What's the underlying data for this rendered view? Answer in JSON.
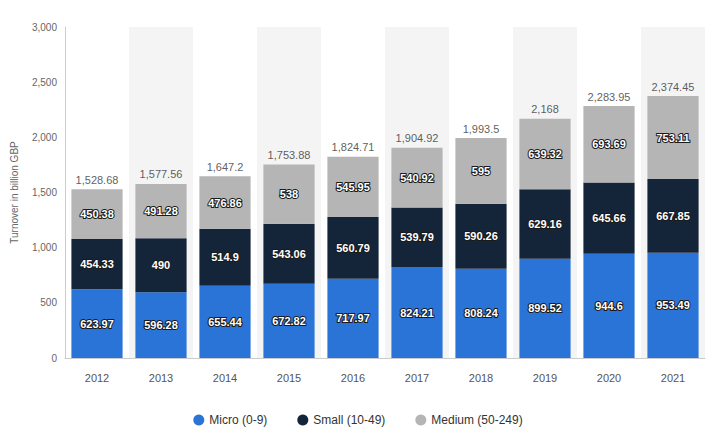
{
  "chart_data": {
    "type": "bar",
    "stacked": true,
    "data_labels": true,
    "grid": true,
    "legend": "bottom",
    "y_label": "Turnover in billion GBP",
    "categories": [
      "2012",
      "2013",
      "2014",
      "2015",
      "2016",
      "2017",
      "2018",
      "2019",
      "2020",
      "2021"
    ],
    "series": [
      {
        "name": "Micro (0-9)",
        "color": "#2a74d8",
        "values": [
          623.97,
          596.28,
          655.44,
          672.82,
          717.97,
          824.21,
          808.24,
          899.52,
          944.6,
          953.49
        ]
      },
      {
        "name": "Small (10-49)",
        "color": "#14253a",
        "values": [
          454.33,
          490,
          514.9,
          543.06,
          560.79,
          539.79,
          590.26,
          629.16,
          645.66,
          667.85
        ]
      },
      {
        "name": "Medium (50-249)",
        "color": "#b5b5b5",
        "values": [
          450.38,
          491.28,
          476.86,
          538,
          545.95,
          540.92,
          595,
          639.32,
          693.69,
          753.11
        ]
      }
    ],
    "totals": [
      1528.68,
      1577.56,
      1647.2,
      1753.88,
      1824.71,
      1904.92,
      1993.5,
      2168,
      2283.95,
      2374.45
    ],
    "total_labels": [
      "1,528.68",
      "1,577.56",
      "1,647.2",
      "1,753.88",
      "1,824.71",
      "1,904.92",
      "1,993.5",
      "2,168",
      "2,283.95",
      "2,374.45"
    ],
    "ylim": [
      0,
      3000
    ],
    "yticks": [
      0,
      500,
      {
        "value": 1000,
        "label": "1,000"
      },
      {
        "value": 1500,
        "label": "1,500"
      },
      {
        "value": 2000,
        "label": "2,000"
      },
      {
        "value": 2500,
        "label": "2,500"
      },
      {
        "value": 3000,
        "label": "3,000"
      }
    ]
  }
}
